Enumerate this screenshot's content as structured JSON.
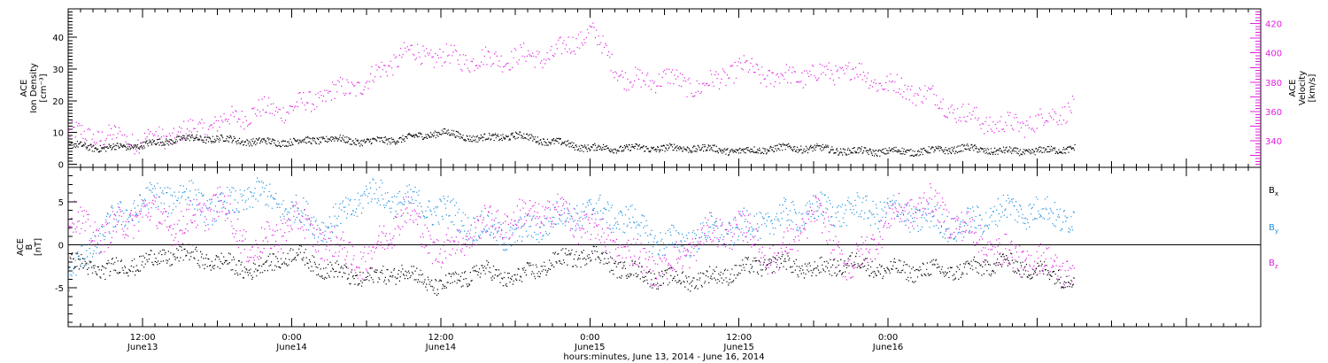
{
  "chart_data": [
    {
      "type": "scatter",
      "panel": "top",
      "y_left_label": [
        "ACE",
        "Ion Density",
        "[cm⁻³]"
      ],
      "y_right_label": [
        "ACE",
        "Velocity",
        "[km/s]"
      ],
      "y_left_ticks": [
        "0",
        "10",
        "20",
        "30",
        "40"
      ],
      "y_right_ticks": [
        "340",
        "360",
        "380",
        "400",
        "420"
      ],
      "ylim_left": [
        -1,
        49
      ],
      "ylim_right": [
        322,
        430
      ],
      "colors": {
        "density": "#000000",
        "velocity": "#e020e0"
      },
      "series": [
        {
          "name": "Ion Density",
          "axis": "left",
          "x_hours": [
            0,
            3,
            6,
            9,
            12,
            15,
            18,
            21,
            24,
            27,
            30,
            33,
            36,
            39,
            42,
            45,
            48,
            51,
            54,
            57,
            60,
            63,
            66,
            69,
            72,
            75,
            78,
            81
          ],
          "values": [
            6,
            5,
            6,
            8,
            8,
            7,
            7,
            8,
            7,
            8,
            10,
            8,
            9,
            7,
            5,
            5,
            5,
            5,
            4,
            5,
            5,
            4,
            4,
            4,
            5,
            4,
            4,
            5
          ]
        },
        {
          "name": "Velocity",
          "axis": "right",
          "x_hours": [
            0,
            3,
            6,
            9,
            12,
            15,
            18,
            21,
            24,
            27,
            30,
            33,
            36,
            39,
            42,
            45,
            48,
            51,
            54,
            57,
            60,
            63,
            66,
            69,
            72,
            75,
            78,
            81
          ],
          "values": [
            345,
            343,
            340,
            345,
            352,
            360,
            362,
            372,
            380,
            400,
            397,
            395,
            397,
            398,
            415,
            380,
            383,
            376,
            390,
            383,
            385,
            388,
            378,
            372,
            358,
            350,
            353,
            364
          ]
        }
      ]
    },
    {
      "type": "scatter",
      "panel": "bottom",
      "y_left_label": [
        "ACE",
        "B",
        "[nT]"
      ],
      "y_left_ticks": [
        "-5",
        "0",
        "5"
      ],
      "ylim": [
        -9.5,
        9
      ],
      "colors": {
        "Bx": "#000000",
        "By": "#1e90e0",
        "Bz": "#e020e0"
      },
      "legend": [
        {
          "label": "B",
          "sub": "x",
          "color": "#000000"
        },
        {
          "label": "B",
          "sub": "y",
          "color": "#1e90e0"
        },
        {
          "label": "B",
          "sub": "z",
          "color": "#e020e0"
        }
      ],
      "series": [
        {
          "name": "Bx",
          "x_hours": [
            0,
            3,
            6,
            9,
            12,
            15,
            18,
            21,
            24,
            27,
            30,
            33,
            36,
            39,
            42,
            45,
            48,
            51,
            54,
            57,
            60,
            63,
            66,
            69,
            72,
            75,
            78,
            81
          ],
          "values": [
            -2,
            -3,
            -2,
            -1,
            -2,
            -3,
            -1,
            -3,
            -4,
            -3,
            -5,
            -3,
            -4,
            -2,
            -1,
            -3,
            -4,
            -4,
            -3,
            -2,
            -3,
            -2,
            -3,
            -3,
            -3,
            -2,
            -3,
            -4
          ]
        },
        {
          "name": "By",
          "x_hours": [
            0,
            3,
            6,
            9,
            12,
            15,
            18,
            21,
            24,
            27,
            30,
            33,
            36,
            39,
            42,
            45,
            48,
            51,
            54,
            57,
            60,
            63,
            66,
            69,
            72,
            75,
            78,
            81
          ],
          "values": [
            -4,
            2,
            5,
            6,
            4,
            6,
            4,
            2,
            6,
            5,
            4,
            2,
            1,
            3,
            4,
            3,
            0,
            1,
            2,
            3,
            4,
            4,
            4,
            3,
            2,
            4,
            4,
            3
          ]
        },
        {
          "name": "Bz",
          "x_hours": [
            0,
            3,
            6,
            9,
            12,
            15,
            18,
            21,
            24,
            27,
            30,
            33,
            36,
            39,
            42,
            45,
            48,
            51,
            54,
            57,
            60,
            63,
            66,
            69,
            72,
            75,
            78,
            81
          ],
          "values": [
            3,
            1,
            4,
            2,
            5,
            -1,
            3,
            0,
            -2,
            4,
            -1,
            2,
            3,
            4,
            2,
            -1,
            -3,
            1,
            2,
            -2,
            4,
            -3,
            3,
            5,
            2,
            -1,
            -2,
            -3
          ]
        }
      ]
    }
  ],
  "x_axis": {
    "xlim_hours": [
      0,
      96
    ],
    "major_ticks": [
      {
        "hour": 6,
        "time": "12:00",
        "date": "June13"
      },
      {
        "hour": 18,
        "time": "0:00",
        "date": "June14"
      },
      {
        "hour": 30,
        "time": "12:00",
        "date": "June14"
      },
      {
        "hour": 42,
        "time": "0:00",
        "date": "June15"
      },
      {
        "hour": 54,
        "time": "12:00",
        "date": "June15"
      },
      {
        "hour": 66,
        "time": "0:00",
        "date": "June16"
      }
    ],
    "xlabel": "hours:minutes, June 13, 2014 - June 16, 2014"
  }
}
